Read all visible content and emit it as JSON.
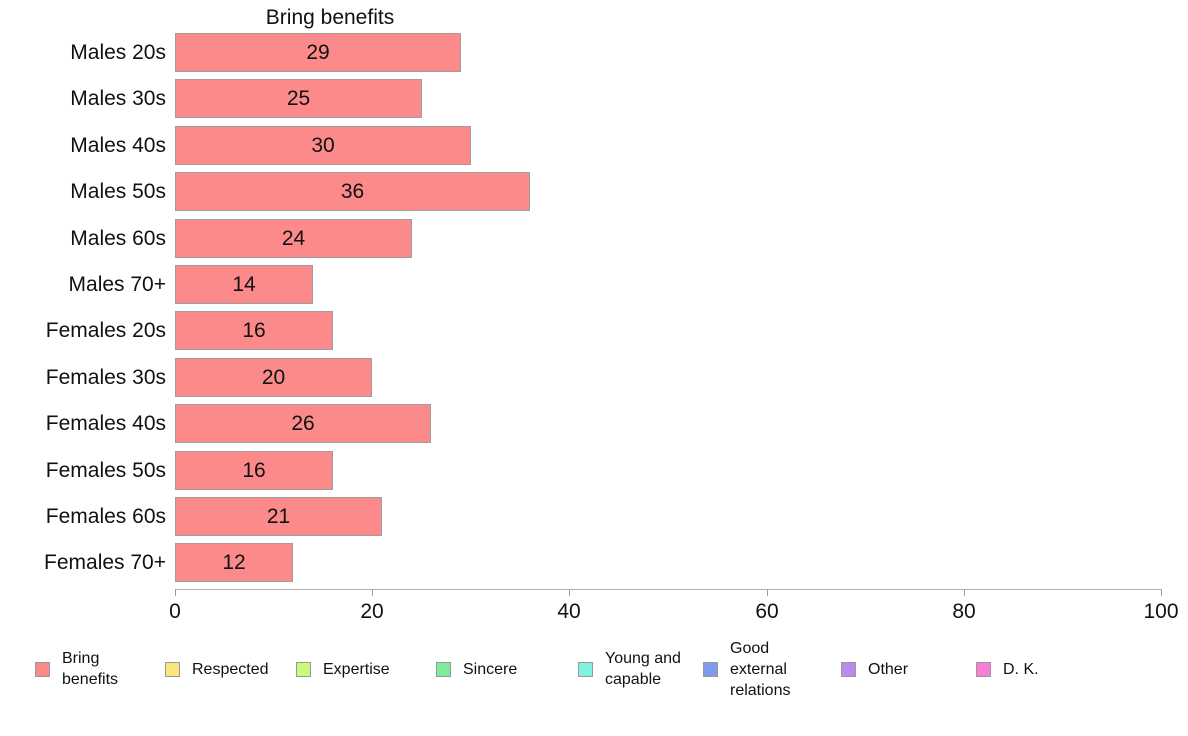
{
  "chart_data": {
    "type": "bar",
    "orientation": "horizontal",
    "title": "Bring benefits",
    "categories": [
      "Males 20s",
      "Males 30s",
      "Males 40s",
      "Males 50s",
      "Males 60s",
      "Males 70+",
      "Females 20s",
      "Females 30s",
      "Females 40s",
      "Females 50s",
      "Females 60s",
      "Females 70+"
    ],
    "values": [
      29,
      25,
      30,
      36,
      24,
      14,
      16,
      20,
      26,
      16,
      21,
      12
    ],
    "value_labels_shown": true,
    "xlim": [
      0,
      100
    ],
    "xticks": [
      0,
      20,
      40,
      60,
      80,
      100
    ],
    "grid": "off",
    "bar_color": "#FC8A8A",
    "bar_border_color": "#9E9E9E",
    "legend_position": "bottom",
    "legend": [
      {
        "label": "Bring benefits",
        "color": "#FC8A8A"
      },
      {
        "label": "Respected",
        "color": "#FBE57E"
      },
      {
        "label": "Expertise",
        "color": "#C9F97F"
      },
      {
        "label": "Sincere",
        "color": "#7FE99D"
      },
      {
        "label": "Young and capable",
        "color": "#7FF2E2"
      },
      {
        "label": "Good external relations",
        "color": "#7F9BEB"
      },
      {
        "label": "Other",
        "color": "#BA8BEF"
      },
      {
        "label": "D. K.",
        "color": "#F97FD6"
      }
    ]
  }
}
